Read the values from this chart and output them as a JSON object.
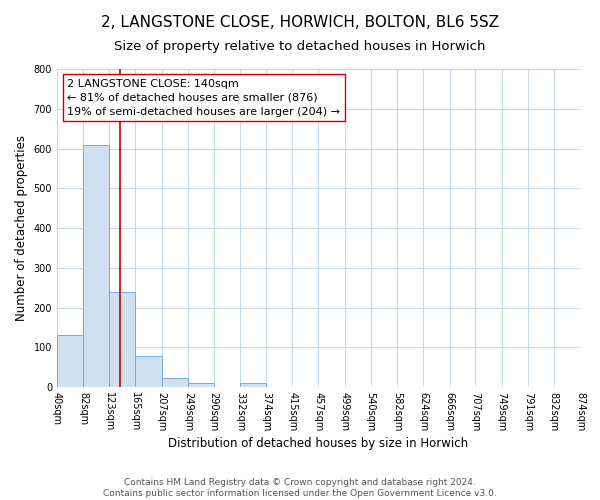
{
  "title": "2, LANGSTONE CLOSE, HORWICH, BOLTON, BL6 5SZ",
  "subtitle": "Size of property relative to detached houses in Horwich",
  "xlabel": "Distribution of detached houses by size in Horwich",
  "ylabel": "Number of detached properties",
  "bin_edges": [
    40,
    82,
    123,
    165,
    207,
    249,
    290,
    332,
    374,
    415,
    457,
    499,
    540,
    582,
    624,
    666,
    707,
    749,
    791,
    832,
    874
  ],
  "bin_labels": [
    "40sqm",
    "82sqm",
    "123sqm",
    "165sqm",
    "207sqm",
    "249sqm",
    "290sqm",
    "332sqm",
    "374sqm",
    "415sqm",
    "457sqm",
    "499sqm",
    "540sqm",
    "582sqm",
    "624sqm",
    "666sqm",
    "707sqm",
    "749sqm",
    "791sqm",
    "832sqm",
    "874sqm"
  ],
  "counts": [
    132,
    608,
    240,
    78,
    22,
    10,
    0,
    10,
    0,
    0,
    0,
    0,
    0,
    0,
    0,
    0,
    0,
    0,
    0,
    0
  ],
  "bar_color": "#cfe0f0",
  "bar_edge_color": "#7aadd4",
  "vline_color": "#cc0000",
  "vline_x": 140,
  "annotation_line1": "2 LANGSTONE CLOSE: 140sqm",
  "annotation_line2": "← 81% of detached houses are smaller (876)",
  "annotation_line3": "19% of semi-detached houses are larger (204) →",
  "ylim": [
    0,
    800
  ],
  "yticks": [
    0,
    100,
    200,
    300,
    400,
    500,
    600,
    700,
    800
  ],
  "footer_line1": "Contains HM Land Registry data © Crown copyright and database right 2024.",
  "footer_line2": "Contains public sector information licensed under the Open Government Licence v3.0.",
  "bg_color": "#ffffff",
  "grid_color": "#c5d8ec",
  "title_fontsize": 11,
  "subtitle_fontsize": 9.5,
  "axis_label_fontsize": 8.5,
  "tick_fontsize": 7,
  "annotation_fontsize": 8,
  "footer_fontsize": 6.5
}
